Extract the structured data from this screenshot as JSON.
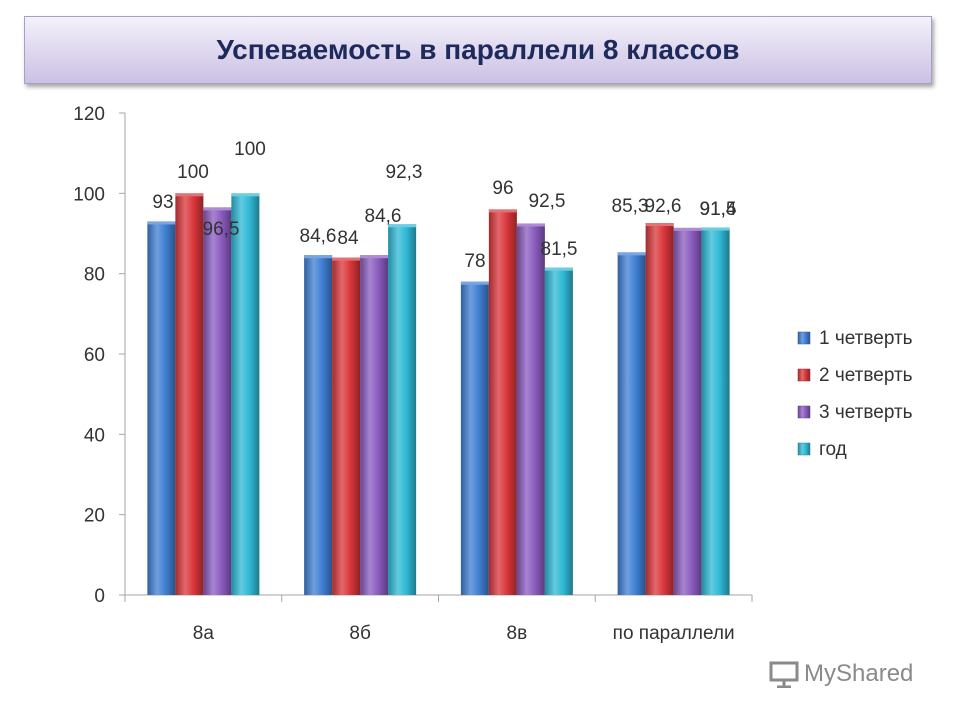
{
  "title": "Успеваемость в параллели 8 классов",
  "chart_data": {
    "type": "bar",
    "categories": [
      "8а",
      "8б",
      "8в",
      "по параллели"
    ],
    "series": [
      {
        "name": "1 четверть",
        "values": [
          93,
          84.6,
          78,
          85.3
        ],
        "labels": [
          "93",
          "84,6",
          "78",
          "85,3"
        ],
        "color": "#3f7fd3"
      },
      {
        "name": "2 четверть",
        "values": [
          100,
          84,
          96,
          92.6
        ],
        "labels": [
          "100",
          "84",
          "96",
          "92,6"
        ],
        "color": "#d9363a"
      },
      {
        "name": "3 четверть",
        "values": [
          96.5,
          84.6,
          92.5,
          91.4
        ],
        "labels": [
          "96,5",
          "84,6",
          "92,5",
          "91,4"
        ],
        "color": "#8a5bbf"
      },
      {
        "name": "год",
        "values": [
          100,
          92.3,
          81.5,
          91.5
        ],
        "labels": [
          "100",
          "92,3",
          "81,5",
          "91,5"
        ],
        "color": "#2fb9d6"
      }
    ],
    "ylim": [
      0,
      120
    ],
    "yticks": [
      0,
      20,
      40,
      60,
      80,
      100,
      120
    ],
    "grid": false,
    "legend": "right"
  },
  "watermark": "MyShared"
}
